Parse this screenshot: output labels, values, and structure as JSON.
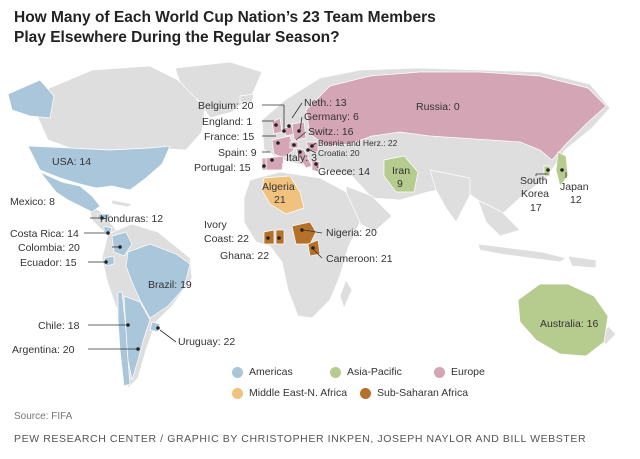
{
  "title": "How Many of Each World Cup Nation’s 23 Team Members Play Elsewhere During the Regular Season?",
  "colors": {
    "Americas": "#a9c6da",
    "Asia-Pacific": "#b6cc8e",
    "Europe": "#d4a5b5",
    "Middle East-N. Africa": "#f0c27d",
    "Sub-Saharan Africa": "#b5702a",
    "land": "#dedede"
  },
  "legend": [
    {
      "label": "Americas",
      "color": "#a9c6da"
    },
    {
      "label": "Asia-Pacific",
      "color": "#b6cc8e"
    },
    {
      "label": "Europe",
      "color": "#d4a5b5"
    },
    {
      "label": "Middle East-N. Africa",
      "color": "#f0c27d"
    },
    {
      "label": "Sub-Saharan Africa",
      "color": "#b5702a"
    }
  ],
  "labels": {
    "usa": "USA: 14",
    "mexico": "Mexico: 8",
    "honduras": "Honduras: 12",
    "costa_rica": "Costa Rica: 14",
    "colombia": "Colombia: 20",
    "ecuador": "Ecuador: 15",
    "brazil": "Brazil: 19",
    "chile": "Chile: 18",
    "argentina": "Argentina: 20",
    "uruguay": "Uruguay: 22",
    "belgium": "Belgium: 20",
    "england": "England: 1",
    "france": "France: 15",
    "spain": "Spain: 9",
    "portugal": "Portugal: 15",
    "neth": "Neth.: 13",
    "germany": "Germany: 6",
    "switz": "Switz.: 16",
    "bosnia": "Bosnia and Herz.: 22",
    "croatia": "Croatia: 20",
    "italy": "Italy: 3",
    "greece": "Greece: 14",
    "russia": "Russia: 0",
    "iran_name": "Iran",
    "iran_value": "9",
    "algeria_name": "Algeria",
    "algeria_value": "21",
    "ivory_line1": "Ivory",
    "ivory_line2": "Coast: 22",
    "ghana": "Ghana: 22",
    "nigeria": "Nigeria: 20",
    "cameroon": "Cameroon: 21",
    "south_korea_line1": "South",
    "south_korea_line2": "Korea",
    "south_korea_value": "17",
    "japan_name": "Japan",
    "japan_value": "12",
    "australia": "Australia: 16"
  },
  "source": "Source: FIFA",
  "credit": "PEW RESEARCH CENTER / GRAPHIC BY CHRISTOPHER INKPEN, JOSEPH NAYLOR AND BILL WEBSTER"
}
